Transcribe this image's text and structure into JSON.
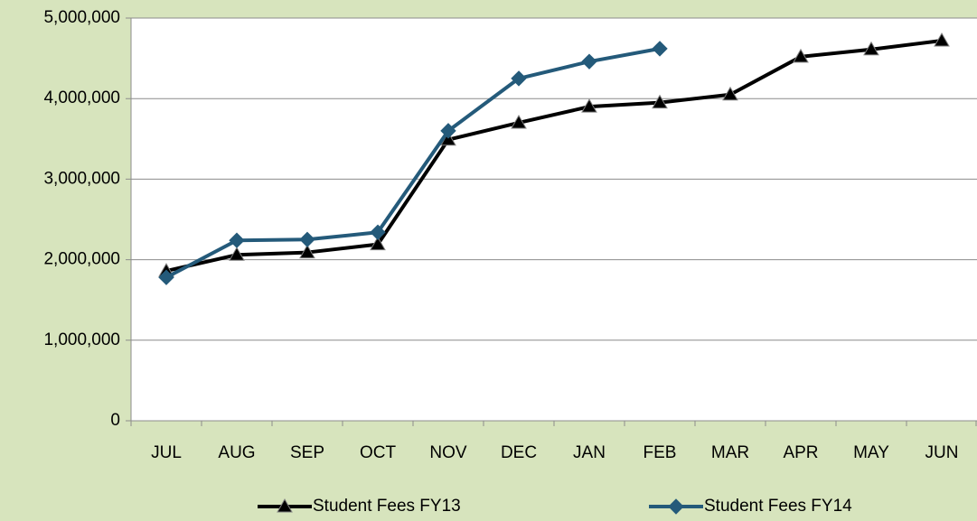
{
  "chart_data": {
    "type": "line",
    "categories": [
      "JUL",
      "AUG",
      "SEP",
      "OCT",
      "NOV",
      "DEC",
      "JAN",
      "FEB",
      "MAR",
      "APR",
      "MAY",
      "JUN"
    ],
    "series": [
      {
        "name": "Student Fees FY13",
        "color": "#000000",
        "marker": "triangle",
        "values": [
          1860000,
          2060000,
          2090000,
          2190000,
          3490000,
          3700000,
          3900000,
          3950000,
          4050000,
          4520000,
          4610000,
          4720000
        ]
      },
      {
        "name": "Student Fees FY14",
        "color": "#245a7a",
        "marker": "diamond",
        "values": [
          1780000,
          2240000,
          2250000,
          2340000,
          3600000,
          4250000,
          4460000,
          4620000,
          null,
          null,
          null,
          null
        ]
      }
    ],
    "ylim": [
      0,
      5000000
    ],
    "yticks": [
      0,
      {
        "value": 1000000,
        "label": "1,000,000"
      },
      {
        "value": 2000000,
        "label": "2,000,000"
      },
      {
        "value": 3000000,
        "label": "3,000,000"
      },
      {
        "value": 4000000,
        "label": "4,000,000"
      },
      {
        "value": 5000000,
        "label": "5,000,000"
      }
    ],
    "grid": true,
    "legend": "bottom"
  }
}
